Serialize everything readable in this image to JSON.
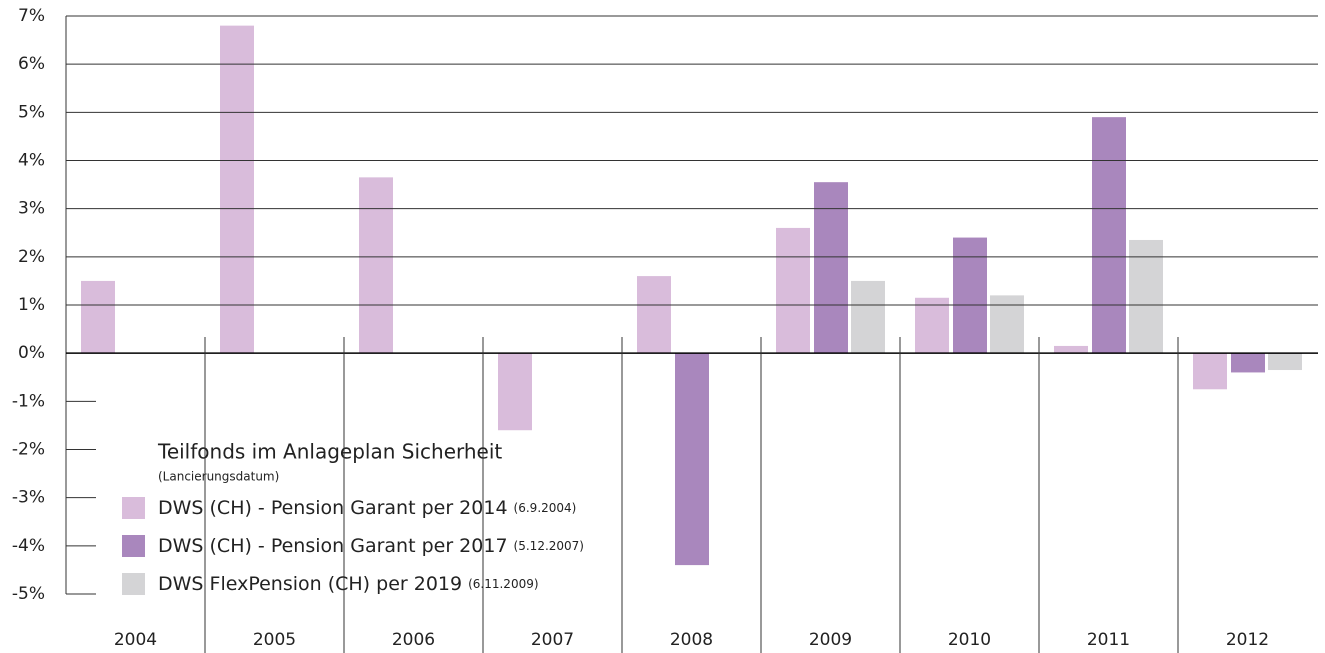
{
  "chart_data": {
    "type": "bar",
    "categories": [
      "2004",
      "2005",
      "2006",
      "2007",
      "2008",
      "2009",
      "2010",
      "2011",
      "2012"
    ],
    "series": [
      {
        "name": "DWS (CH) - Pension Garant per 2014",
        "date": "(6.9.2004)",
        "color": "#d9bcdb",
        "values": [
          1.5,
          6.8,
          3.65,
          -1.6,
          1.6,
          2.6,
          1.15,
          0.15,
          -0.75
        ]
      },
      {
        "name": "DWS (CH) - Pension Garant per 2017",
        "date": "(5.12.2007)",
        "color": "#a987bd",
        "values": [
          null,
          null,
          null,
          null,
          -4.4,
          3.55,
          2.4,
          4.9,
          -0.4
        ]
      },
      {
        "name": "DWS FlexPension (CH) per 2019",
        "date": "(6.11.2009)",
        "color": "#d4d4d6",
        "values": [
          null,
          null,
          null,
          null,
          null,
          1.5,
          1.2,
          2.35,
          -0.35
        ]
      }
    ],
    "legend_title": "Teilfonds im Anlageplan Sicherheit",
    "legend_subtitle": "(Lancierungsdatum)",
    "ylim": [
      -5,
      7
    ],
    "yticks": [
      {
        "value": -5,
        "label": "-5%"
      },
      {
        "value": -4,
        "label": "-4%"
      },
      {
        "value": -3,
        "label": "-3%"
      },
      {
        "value": -2,
        "label": "-2%"
      },
      {
        "value": -1,
        "label": "-1%"
      },
      {
        "value": 0,
        "label": "0%"
      },
      {
        "value": 1,
        "label": "1%"
      },
      {
        "value": 2,
        "label": "2%"
      },
      {
        "value": 3,
        "label": "3%"
      },
      {
        "value": 4,
        "label": "4%"
      },
      {
        "value": 5,
        "label": "5%"
      },
      {
        "value": 6,
        "label": "6%"
      },
      {
        "value": 7,
        "label": "7%"
      }
    ],
    "grid": true
  }
}
